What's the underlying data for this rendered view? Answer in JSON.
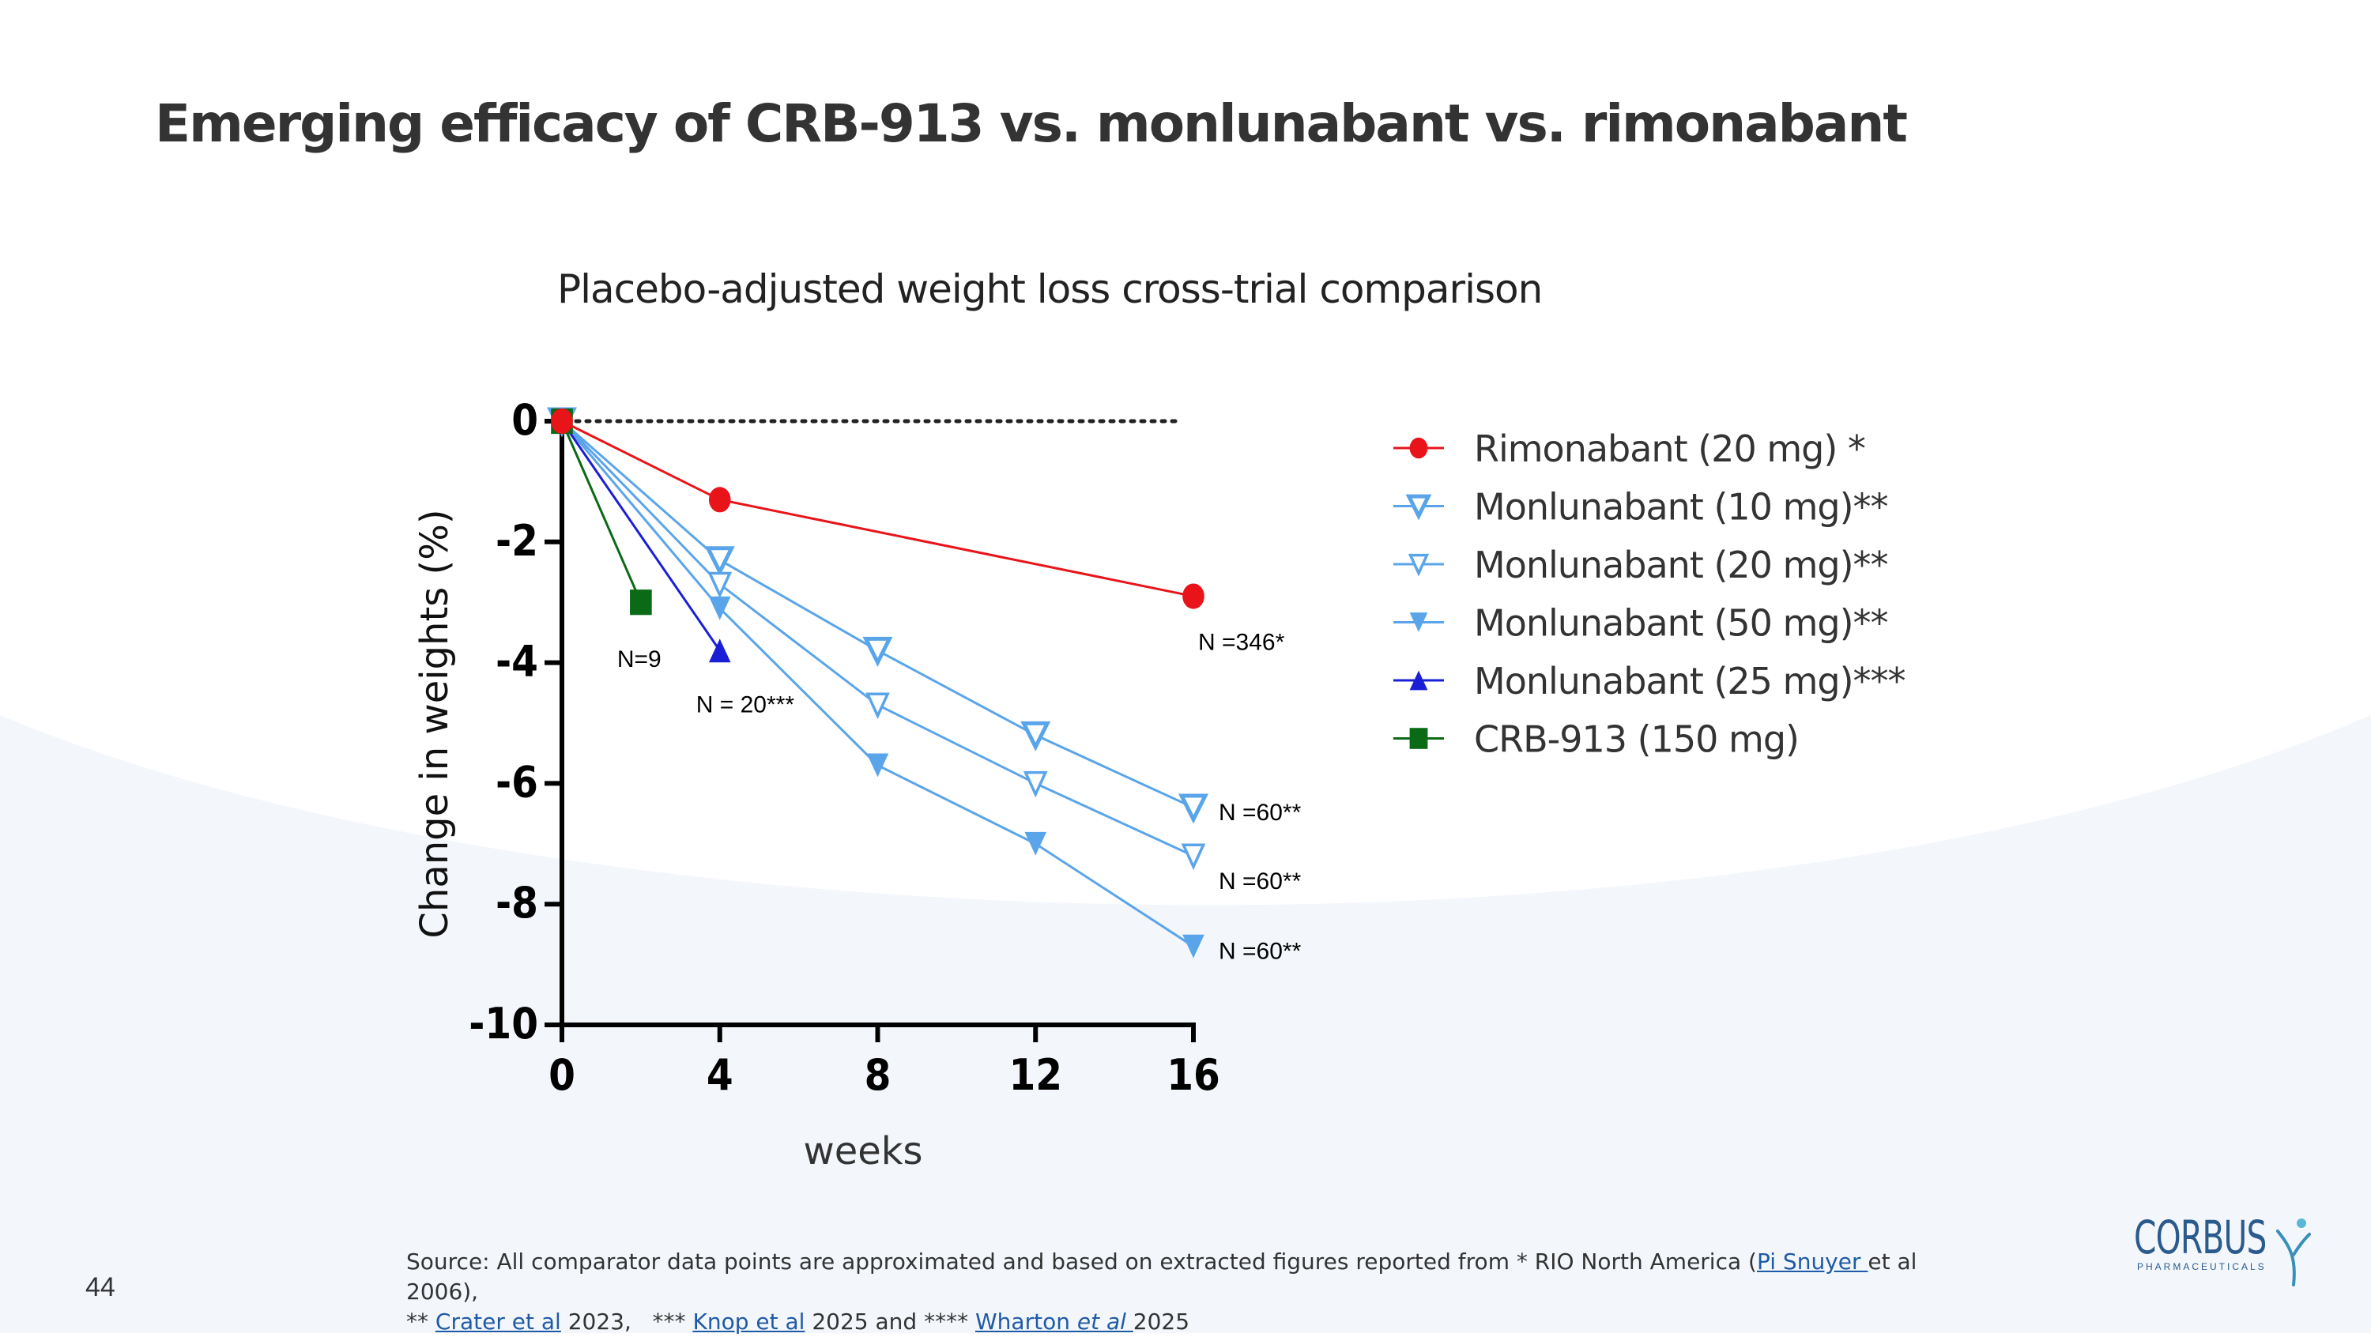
{
  "slide": {
    "title": "Emerging efficacy of CRB-913 vs. monlunabant vs. rimonabant",
    "page_number": "44"
  },
  "source": {
    "line1_prefix": "Source: All comparator data points are approximated and based on extracted figures reported from * RIO North America (",
    "link_pi_snuyer": "Pi Snuyer ",
    "line1_suffix": "et al 2006),",
    "line2_prefix": "** ",
    "link_crater": "Crater et al",
    "line2_mid1": " 2023,   *** ",
    "link_knop": "Knop et al",
    "line2_mid2": " 2025 and **** ",
    "link_wharton": "Wharton ",
    "link_wharton_etal": "et al ",
    "line2_suffix": "2025"
  },
  "logo": {
    "name": "CORBUS",
    "sub": "PHARMACEUTICALS"
  },
  "colors": {
    "red": "#e8141a",
    "light_blue": "#5aa5ea",
    "dark_blue": "#1a1fd6",
    "green": "#0a6a16",
    "bg_wave": "#f3f7fc"
  },
  "chart_data": {
    "type": "line",
    "title": "Placebo-adjusted weight loss cross-trial comparison",
    "xlabel": "weeks",
    "ylabel": "Change in weights (%)",
    "xlim": [
      0,
      16
    ],
    "ylim": [
      -10,
      0
    ],
    "xticks": [
      0,
      4,
      8,
      12,
      16
    ],
    "yticks": [
      0,
      -2,
      -4,
      -6,
      -8,
      -10
    ],
    "reference_line": {
      "y": 0,
      "style": "dotted",
      "x_range": [
        0,
        16
      ]
    },
    "legend_position": "right",
    "series": [
      {
        "name": "Rimonabant (20 mg) *",
        "marker": "circle",
        "color": "#e8141a",
        "points": [
          [
            0,
            0
          ],
          [
            4,
            -1.3
          ],
          [
            16,
            -2.9
          ]
        ],
        "annotation": "N =346*"
      },
      {
        "name": "Monlunabant (10 mg)**",
        "marker": "triangle-down-open",
        "color": "#5aa5ea",
        "points": [
          [
            0,
            0
          ],
          [
            4,
            -2.3
          ],
          [
            8,
            -3.8
          ],
          [
            12,
            -5.2
          ],
          [
            16,
            -6.4
          ]
        ],
        "annotation": "N =60**"
      },
      {
        "name": "Monlunabant (20 mg)**",
        "marker": "triangle-down-open-small",
        "color": "#5aa5ea",
        "points": [
          [
            0,
            0
          ],
          [
            4,
            -2.7
          ],
          [
            8,
            -4.7
          ],
          [
            12,
            -6.0
          ],
          [
            16,
            -7.2
          ]
        ],
        "annotation": "N =60**"
      },
      {
        "name": "Monlunabant (50 mg)**",
        "marker": "triangle-down",
        "color": "#5aa5ea",
        "points": [
          [
            0,
            0
          ],
          [
            4,
            -3.1
          ],
          [
            8,
            -5.7
          ],
          [
            12,
            -7.0
          ],
          [
            16,
            -8.7
          ]
        ],
        "annotation": "N =60**"
      },
      {
        "name": "Monlunabant (25 mg)***",
        "marker": "triangle-up",
        "color": "#1a1fd6",
        "points": [
          [
            0,
            0
          ],
          [
            4,
            -3.8
          ]
        ],
        "annotation": "N = 20***"
      },
      {
        "name": "CRB-913 (150 mg)",
        "marker": "square",
        "color": "#0a6a16",
        "points": [
          [
            0,
            0
          ],
          [
            2,
            -3.0
          ]
        ],
        "annotation": "N=9"
      }
    ]
  }
}
